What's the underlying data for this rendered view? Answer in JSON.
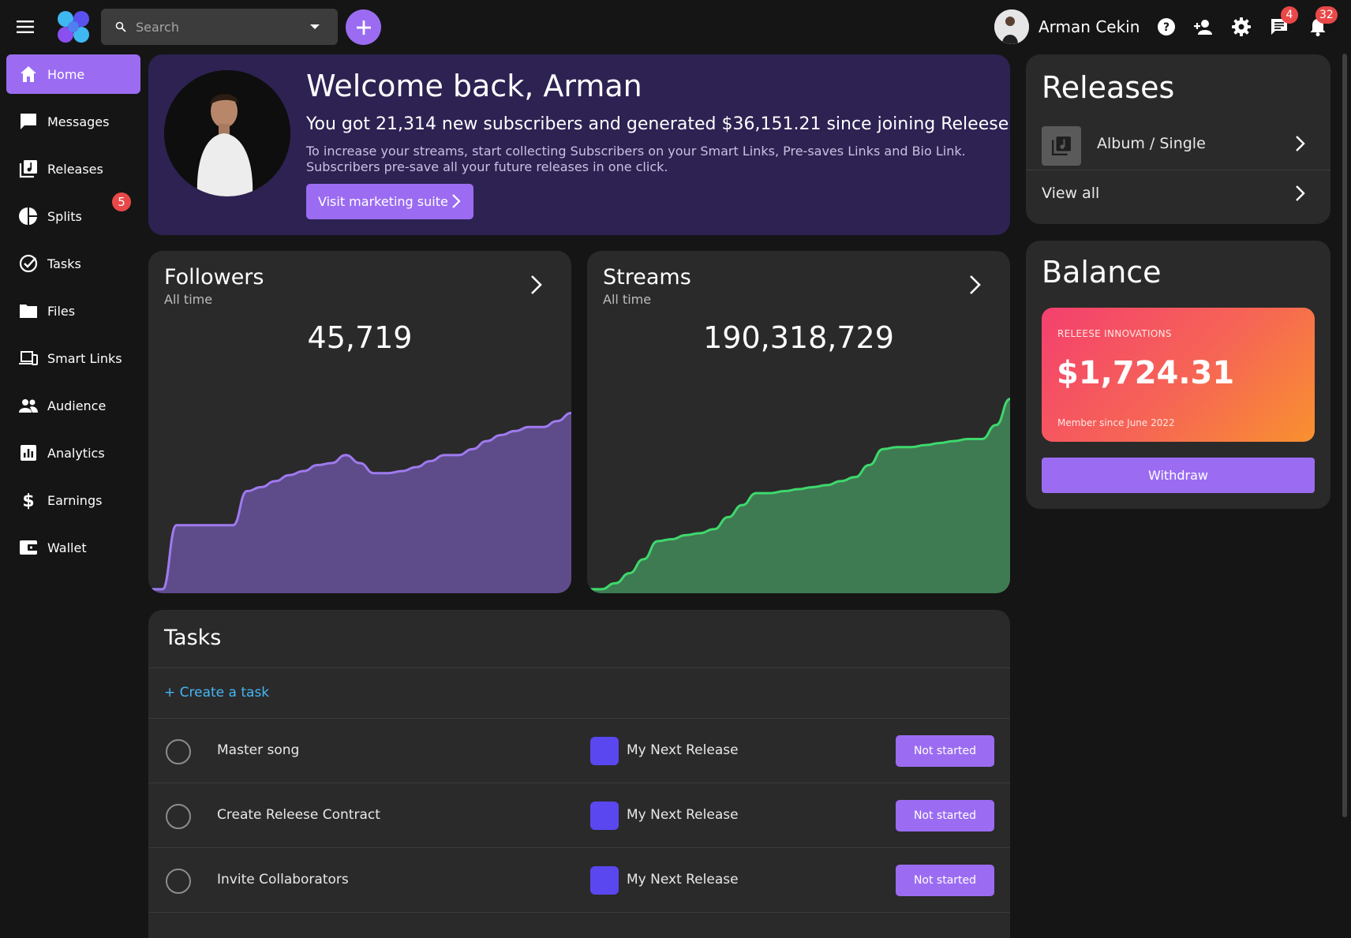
{
  "colors": {
    "accent": "#9b6cf2",
    "background": "#151515",
    "card": "#2a2a2a",
    "welcome_card": "#2d2252",
    "badge": "#e94848",
    "link": "#46b6f5",
    "followers_line": "#9f7aef",
    "followers_fill": "#5e4c8a",
    "streams_line": "#3fd86d",
    "streams_fill": "#3e7a52",
    "release_color": "#5a47f0"
  },
  "topbar": {
    "menu_icon": "hamburger-icon",
    "logo_icon": "clover-logo-icon",
    "search": {
      "placeholder": "Search",
      "value": "",
      "icon": "search-icon",
      "dropdown_icon": "caret-down-icon"
    },
    "add_icon": "plus-icon",
    "user": {
      "name": "Arman Cekin",
      "avatar_icon": "avatar"
    },
    "icons": [
      "help-icon",
      "add-user-icon",
      "gear-icon",
      "chat-icon",
      "bell-icon"
    ],
    "messages_badge": "4",
    "notifications_badge": "32"
  },
  "sidebar": {
    "items": [
      {
        "label": "Home",
        "icon": "home-icon",
        "active": true
      },
      {
        "label": "Messages",
        "icon": "message-icon",
        "active": false
      },
      {
        "label": "Releases",
        "icon": "music-library-icon",
        "active": false
      },
      {
        "label": "Splits",
        "icon": "pie-chart-icon",
        "active": false
      },
      {
        "label": "Tasks",
        "icon": "check-circle-icon",
        "active": false
      },
      {
        "label": "Files",
        "icon": "folder-icon",
        "active": false
      },
      {
        "label": "Smart Links",
        "icon": "devices-icon",
        "active": false
      },
      {
        "label": "Audience",
        "icon": "people-icon",
        "active": false
      },
      {
        "label": "Analytics",
        "icon": "analytics-icon",
        "active": false
      },
      {
        "label": "Earnings",
        "icon": "dollar-icon",
        "active": false
      },
      {
        "label": "Wallet",
        "icon": "wallet-icon",
        "active": false
      }
    ],
    "splits_badge": "5"
  },
  "welcome": {
    "title": "Welcome back, Arman",
    "subtitle": "You got 21,314 new subscribers and generated $36,151.21 since joining Releese",
    "description": "To increase your streams, start collecting Subscribers on your Smart Links, Pre-saves Links and Bio Link. Subscribers pre-save all your future releases in one click.",
    "button_label": "Visit marketing suite"
  },
  "releases": {
    "title": "Releases",
    "item_label": "Album / Single",
    "item_icon": "music-library-icon",
    "view_all_label": "View all"
  },
  "balance": {
    "title": "Balance",
    "org": "RELEESE INNOVATIONS",
    "amount": "$1,724.31",
    "member_since": "Member since June 2022",
    "withdraw_label": "Withdraw"
  },
  "followers": {
    "title": "Followers",
    "period": "All time",
    "value": "45,719"
  },
  "streams": {
    "title": "Streams",
    "period": "All time",
    "value": "190,318,729"
  },
  "chart_data": [
    {
      "type": "area",
      "title": "Followers",
      "x": [
        0,
        1,
        2,
        3,
        4,
        5,
        6,
        7,
        8,
        9,
        10,
        11,
        12,
        13,
        14,
        15,
        16,
        17,
        18,
        19,
        20,
        21,
        22,
        23,
        24,
        25,
        26,
        27,
        28,
        29,
        30
      ],
      "series": [
        {
          "name": "Followers",
          "values": [
            2,
            2,
            34,
            34,
            34,
            34,
            34,
            51,
            53,
            56,
            59,
            61,
            64,
            65,
            69,
            65,
            60,
            60,
            61,
            63,
            66,
            69,
            69,
            72,
            76,
            79,
            81,
            83,
            83,
            86,
            90
          ]
        }
      ],
      "ylim": [
        0,
        130
      ],
      "grid": false
    },
    {
      "type": "area",
      "title": "Streams",
      "x": [
        0,
        1,
        2,
        3,
        4,
        5,
        6,
        7,
        8,
        9,
        10,
        11,
        12,
        13,
        14,
        15,
        16,
        17,
        18,
        19,
        20,
        21,
        22,
        23,
        24,
        25,
        26,
        27,
        28,
        29,
        30
      ],
      "series": [
        {
          "name": "Streams",
          "values": [
            2,
            2,
            5,
            10,
            17,
            26,
            27,
            29,
            30,
            32,
            38,
            44,
            50,
            50,
            51,
            52,
            53,
            54,
            56,
            58,
            64,
            72,
            73,
            73,
            74,
            75,
            76,
            77,
            77,
            84,
            97
          ]
        }
      ],
      "ylim": [
        0,
        130
      ],
      "grid": false
    }
  ],
  "tasks": {
    "title": "Tasks",
    "create_label": "+ Create a task",
    "rows": [
      {
        "name": "Master song",
        "release": "My Next Release",
        "status": "Not started"
      },
      {
        "name": "Create Releese Contract",
        "release": "My Next Release",
        "status": "Not started"
      },
      {
        "name": "Invite Collaborators",
        "release": "My Next Release",
        "status": "Not started"
      }
    ]
  }
}
